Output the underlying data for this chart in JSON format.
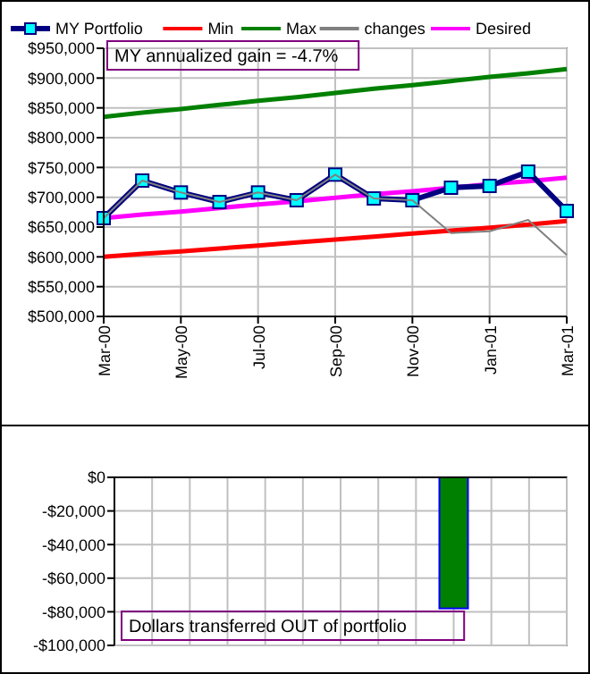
{
  "chart_data": [
    {
      "type": "line",
      "categories": [
        "Mar-00",
        null,
        "May-00",
        null,
        "Jul-00",
        null,
        "Sep-00",
        null,
        "Nov-00",
        null,
        "Jan-01",
        null,
        "Mar-01"
      ],
      "series": [
        {
          "name": "Min",
          "color": "#ff0000",
          "values": [
            600000,
            605000,
            609000,
            614000,
            619000,
            624000,
            629000,
            634000,
            639000,
            644000,
            649000,
            654000,
            660000
          ]
        },
        {
          "name": "Max",
          "color": "#008000",
          "values": [
            835000,
            842000,
            848000,
            855000,
            862000,
            868000,
            875000,
            882000,
            888000,
            895000,
            902000,
            908000,
            915000
          ]
        },
        {
          "name": "Desired",
          "color": "#ff00ff",
          "values": [
            665000,
            671000,
            676000,
            682000,
            688000,
            693000,
            699000,
            705000,
            710000,
            716000,
            722000,
            727000,
            733000
          ]
        },
        {
          "name": "MY Portfolio",
          "color": "#000080",
          "marker": "square",
          "values": [
            665000,
            728000,
            708000,
            692000,
            708000,
            695000,
            738000,
            698000,
            695000,
            716000,
            719000,
            743000,
            677000
          ]
        },
        {
          "name": "changes",
          "color": "#808080",
          "values": [
            665000,
            728000,
            708000,
            692000,
            708000,
            695000,
            738000,
            698000,
            695000,
            640000,
            643000,
            662000,
            603000
          ]
        }
      ],
      "ylim": [
        500000,
        950000
      ],
      "yticks": [
        {
          "value": 500000,
          "label": "$500,000"
        },
        {
          "value": 550000,
          "label": "$550,000"
        },
        {
          "value": 600000,
          "label": "$600,000"
        },
        {
          "value": 650000,
          "label": "$650,000"
        },
        {
          "value": 700000,
          "label": "$700,000"
        },
        {
          "value": 750000,
          "label": "$750,000"
        },
        {
          "value": 800000,
          "label": "$800,000"
        },
        {
          "value": 850000,
          "label": "$850,000"
        },
        {
          "value": 900000,
          "label": "$900,000"
        },
        {
          "value": 950000,
          "label": "$950,000"
        }
      ],
      "grid": true,
      "legend": "top",
      "annotations": [
        "MY annualized gain = -4.7%"
      ]
    },
    {
      "type": "bar",
      "categories": [
        null,
        null,
        null,
        null,
        null,
        null,
        null,
        null,
        null,
        null,
        null,
        null,
        null
      ],
      "values": [
        null,
        null,
        null,
        null,
        null,
        null,
        null,
        null,
        null,
        -78000,
        null,
        null,
        null
      ],
      "color": "#008000",
      "ylim": [
        -100000,
        0
      ],
      "yticks": [
        {
          "value": -100000,
          "label": "-$100,000"
        },
        {
          "value": -80000,
          "label": "-$80,000"
        },
        {
          "value": -60000,
          "label": "-$60,000"
        },
        {
          "value": -40000,
          "label": "-$40,000"
        },
        {
          "value": -20000,
          "label": "-$20,000"
        },
        {
          "value": 0,
          "label": "$0"
        }
      ],
      "grid": true,
      "tick_labels": "y",
      "annotations": [
        "Dollars transferred OUT of portfolio"
      ]
    }
  ]
}
